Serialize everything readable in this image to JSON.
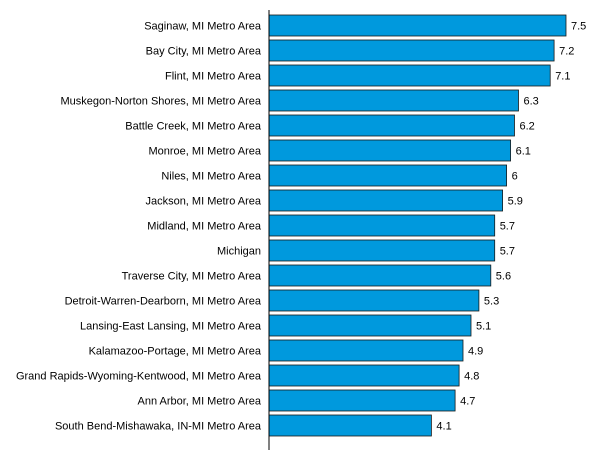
{
  "chart_data": {
    "type": "bar",
    "orientation": "horizontal",
    "title": "",
    "xlabel": "",
    "ylabel": "",
    "grid": false,
    "legend": "none",
    "xlim": [
      0,
      7.5
    ],
    "categories": [
      "Saginaw, MI Metro Area",
      "Bay City, MI Metro Area",
      "Flint, MI Metro Area",
      "Muskegon-Norton Shores, MI Metro Area",
      "Battle Creek, MI Metro Area",
      "Monroe, MI Metro Area",
      "Niles, MI Metro Area",
      "Jackson, MI Metro Area",
      "Midland, MI Metro Area",
      "Michigan",
      "Traverse City, MI Metro Area",
      "Detroit-Warren-Dearborn, MI Metro Area",
      "Lansing-East Lansing, MI Metro Area",
      "Kalamazoo-Portage, MI Metro Area",
      "Grand Rapids-Wyoming-Kentwood, MI Metro Area",
      "Ann Arbor, MI Metro Area",
      "South Bend-Mishawaka, IN-MI Metro Area"
    ],
    "values": [
      7.5,
      7.2,
      7.1,
      6.3,
      6.2,
      6.1,
      6,
      5.9,
      5.7,
      5.7,
      5.6,
      5.3,
      5.1,
      4.9,
      4.8,
      4.7,
      4.1
    ],
    "value_labels": [
      "7.5",
      "7.2",
      "7.1",
      "6.3",
      "6.2",
      "6.1",
      "6",
      "5.9",
      "5.7",
      "5.7",
      "5.6",
      "5.3",
      "5.1",
      "4.9",
      "4.8",
      "4.7",
      "4.1"
    ],
    "colors": {
      "bar_fill": "#0099dd",
      "bar_stroke": "#1a1a1a",
      "axis": "#000000"
    }
  }
}
